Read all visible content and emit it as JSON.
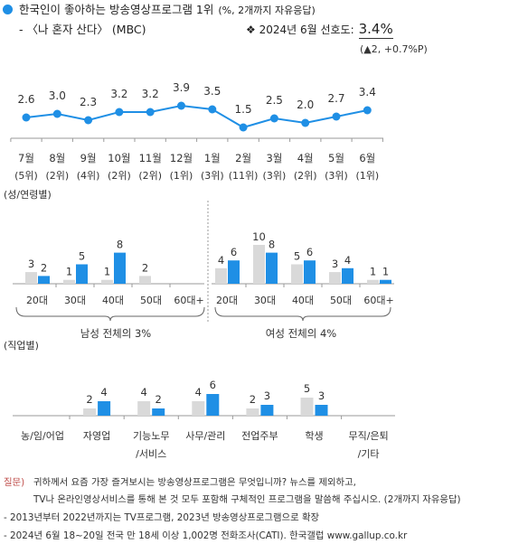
{
  "header": {
    "title": "한국인이 좋아하는 방송영상프로그램 1위",
    "title_note": "(%, 2개까지 자유응답)",
    "subtitle": "- 〈나 혼자 산다〉 (MBC)",
    "preference_label": "❖ 2024년 6월 선호도:",
    "preference_value": "3.4%",
    "preference_change": "(▲2, +0.7%P)"
  },
  "colors": {
    "accent": "#1f8fe5",
    "bar_gray": "#d9d9d9",
    "question_label": "#c0504d"
  },
  "chart_data": [
    {
      "type": "line",
      "categories": [
        "7월",
        "8월",
        "9월",
        "10월",
        "11월",
        "12월",
        "1월",
        "2월",
        "3월",
        "4월",
        "5월",
        "6월"
      ],
      "rank_labels": [
        "(5위)",
        "(2위)",
        "(4위)",
        "(2위)",
        "(2위)",
        "(1위)",
        "(3위)",
        "(11위)",
        "(3위)",
        "(2위)",
        "(3위)",
        "(1위)"
      ],
      "values": [
        2.6,
        3.0,
        2.3,
        3.2,
        3.2,
        3.9,
        3.5,
        1.5,
        2.5,
        2.0,
        2.7,
        3.4
      ],
      "value_labels": [
        "2.6",
        "3.0",
        "2.3",
        "3.2",
        "3.2",
        "3.9",
        "3.5",
        "1.5",
        "2.5",
        "2.0",
        "2.7",
        "3.4"
      ]
    },
    {
      "type": "bar",
      "section_label": "(성/연령별)",
      "panels": [
        {
          "label": "남성 전체의 3%",
          "categories": [
            "20대",
            "30대",
            "40대",
            "50대",
            "60대+"
          ],
          "series": [
            {
              "color": "#d9d9d9",
              "values": [
                3,
                1,
                1,
                2,
                null
              ]
            },
            {
              "color": "#1f8fe5",
              "values": [
                2,
                5,
                8,
                null,
                null
              ]
            }
          ]
        },
        {
          "label": "여성 전체의 4%",
          "categories": [
            "20대",
            "30대",
            "40대",
            "50대",
            "60대+"
          ],
          "series": [
            {
              "color": "#d9d9d9",
              "values": [
                4,
                10,
                5,
                3,
                1
              ]
            },
            {
              "color": "#1f8fe5",
              "values": [
                6,
                8,
                6,
                4,
                1
              ]
            }
          ]
        }
      ]
    },
    {
      "type": "bar",
      "section_label": "(직업별)",
      "categories": [
        [
          "농/임/어업"
        ],
        [
          "자영업"
        ],
        [
          "기능노무",
          "/서비스"
        ],
        [
          "사무/관리"
        ],
        [
          "전업주부"
        ],
        [
          "학생"
        ],
        [
          "무직/은퇴",
          "/기타"
        ]
      ],
      "series": [
        {
          "color": "#d9d9d9",
          "values": [
            null,
            2,
            4,
            4,
            2,
            5,
            null
          ]
        },
        {
          "color": "#1f8fe5",
          "values": [
            null,
            4,
            2,
            6,
            3,
            3,
            null
          ]
        }
      ]
    }
  ],
  "footer": {
    "question_label": "질문)",
    "question_line1": "귀하께서 요즘 가장 즐겨보시는 방송영상프로그램은 무엇입니까? 뉴스를 제외하고,",
    "question_line2": "TV나 온라인영상서비스를 통해 본 것 모두 포함해 구체적인 프로그램을 말씀해 주십시오. (2개까지 자유응답)",
    "notes": [
      "- 2013년부터 2022년까지는 TV프로그램, 2023년 방송영상프로그램으로 확장",
      "- 2024년 6월 18~20일 전국 만 18세 이상 1,002명 전화조사(CATI). 한국갤럽 www.gallup.co.kr"
    ]
  }
}
